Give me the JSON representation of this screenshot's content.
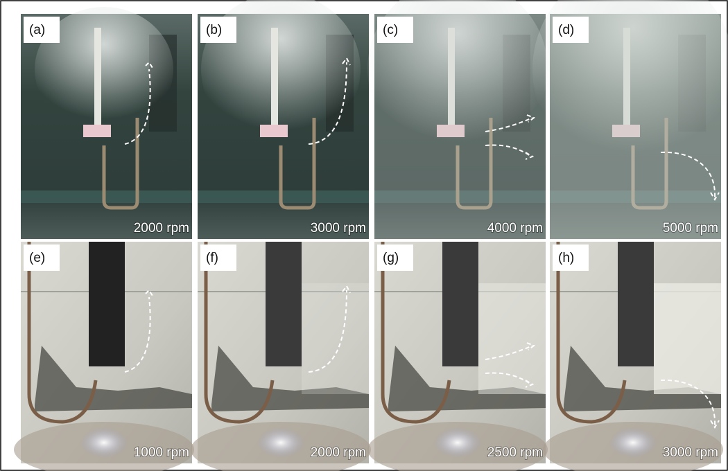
{
  "panels": [
    {
      "label": "(a)",
      "speed": "2000 rpm"
    },
    {
      "label": "(b)",
      "speed": "3000 rpm"
    },
    {
      "label": "(c)",
      "speed": "4000 rpm"
    },
    {
      "label": "(d)",
      "speed": "5000 rpm"
    },
    {
      "label": "(e)",
      "speed": "1000 rpm"
    },
    {
      "label": "(f)",
      "speed": "2000 rpm"
    },
    {
      "label": "(g)",
      "speed": "2500 rpm"
    },
    {
      "label": "(h)",
      "speed": "3000 rpm"
    }
  ]
}
